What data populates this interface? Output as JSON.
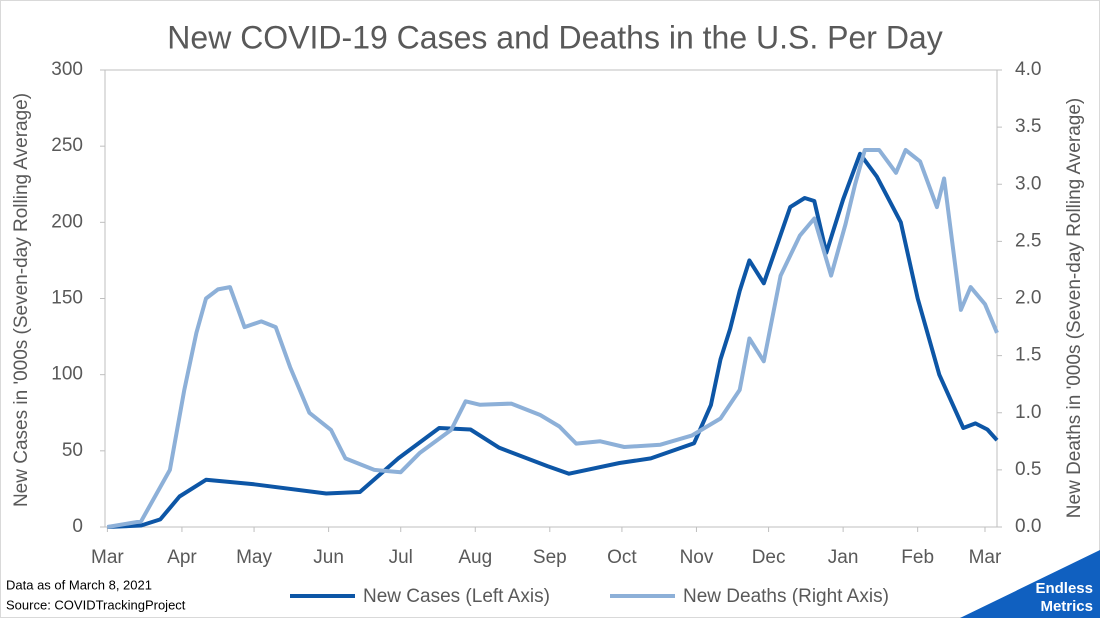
{
  "chart_data": {
    "type": "line",
    "title": "New COVID-19 Cases and Deaths in the U.S. Per Day",
    "y_label": "New Cases in '000s (Seven-day Rolling Average)",
    "y2_label": "New Deaths in '000s (Seven-day Rolling Average)",
    "xlim": [
      -1,
      370
    ],
    "xticks": [
      {
        "value": 0,
        "label": "Mar"
      },
      {
        "value": 31,
        "label": "Apr"
      },
      {
        "value": 61,
        "label": "May"
      },
      {
        "value": 92,
        "label": "Jun"
      },
      {
        "value": 122,
        "label": "Jul"
      },
      {
        "value": 153,
        "label": "Aug"
      },
      {
        "value": 184,
        "label": "Sep"
      },
      {
        "value": 214,
        "label": "Oct"
      },
      {
        "value": 245,
        "label": "Nov"
      },
      {
        "value": 275,
        "label": "Dec"
      },
      {
        "value": 306,
        "label": "Jan"
      },
      {
        "value": 337,
        "label": "Feb"
      },
      {
        "value": 365,
        "label": "Mar"
      }
    ],
    "ylim": [
      0,
      300
    ],
    "yticks": [
      0,
      50,
      100,
      150,
      200,
      250,
      300
    ],
    "y2lim": [
      0,
      4
    ],
    "y2ticks": [
      {
        "value": 0,
        "label": "0.0"
      },
      {
        "value": 0.5,
        "label": "0.5"
      },
      {
        "value": 1,
        "label": "1.0"
      },
      {
        "value": 1.5,
        "label": "1.5"
      },
      {
        "value": 2,
        "label": "2.0"
      },
      {
        "value": 2.5,
        "label": "2.5"
      },
      {
        "value": 3,
        "label": "3.0"
      },
      {
        "value": 3.5,
        "label": "3.5"
      },
      {
        "value": 4,
        "label": "4.0"
      }
    ],
    "series": [
      {
        "name": "New Cases (Left Axis)",
        "color": "#0d56a6",
        "axis": "y",
        "x": [
          0,
          14,
          22,
          30,
          41,
          61,
          91,
          105,
          121,
          138,
          151,
          163,
          183,
          192,
          213,
          226,
          244,
          251,
          255,
          259,
          263,
          267,
          273,
          284,
          290,
          294,
          299,
          306,
          313,
          320,
          330,
          337,
          346,
          356,
          361,
          366,
          370
        ],
        "values": [
          0,
          1,
          5,
          20,
          31,
          28,
          22,
          23,
          45,
          65,
          64,
          52,
          40,
          35,
          42,
          45,
          55,
          80,
          110,
          130,
          155,
          175,
          160,
          210,
          216,
          214,
          180,
          215,
          245,
          230,
          200,
          150,
          100,
          65,
          68,
          64,
          57
        ]
      },
      {
        "name": "New Deaths (Right Axis)",
        "color": "#8db0d8",
        "axis": "y2",
        "x": [
          0,
          14,
          26,
          32,
          37,
          41,
          46,
          51,
          57,
          64,
          70,
          76,
          84,
          93,
          99,
          111,
          122,
          130,
          143,
          149,
          155,
          168,
          180,
          188,
          195,
          205,
          215,
          230,
          243,
          255,
          263,
          267,
          273,
          280,
          288,
          294,
          301,
          307,
          311,
          315,
          321,
          328,
          332,
          338,
          345,
          348,
          355,
          359,
          365,
          370
        ],
        "values": [
          0,
          0.05,
          0.5,
          1.2,
          1.7,
          2.0,
          2.08,
          2.1,
          1.75,
          1.8,
          1.75,
          1.4,
          1.0,
          0.85,
          0.6,
          0.5,
          0.48,
          0.65,
          0.85,
          1.1,
          1.07,
          1.08,
          0.98,
          0.88,
          0.73,
          0.75,
          0.7,
          0.72,
          0.8,
          0.95,
          1.2,
          1.65,
          1.45,
          2.2,
          2.55,
          2.7,
          2.2,
          2.65,
          3.0,
          3.3,
          3.3,
          3.1,
          3.3,
          3.2,
          2.8,
          3.05,
          1.9,
          2.1,
          1.95,
          1.7
        ]
      }
    ]
  },
  "footer": {
    "note": "Data as of March 8, 2021",
    "source": "Source: COVIDTrackingProject",
    "logo_top": "Endless",
    "logo_bottom": "Metrics"
  }
}
